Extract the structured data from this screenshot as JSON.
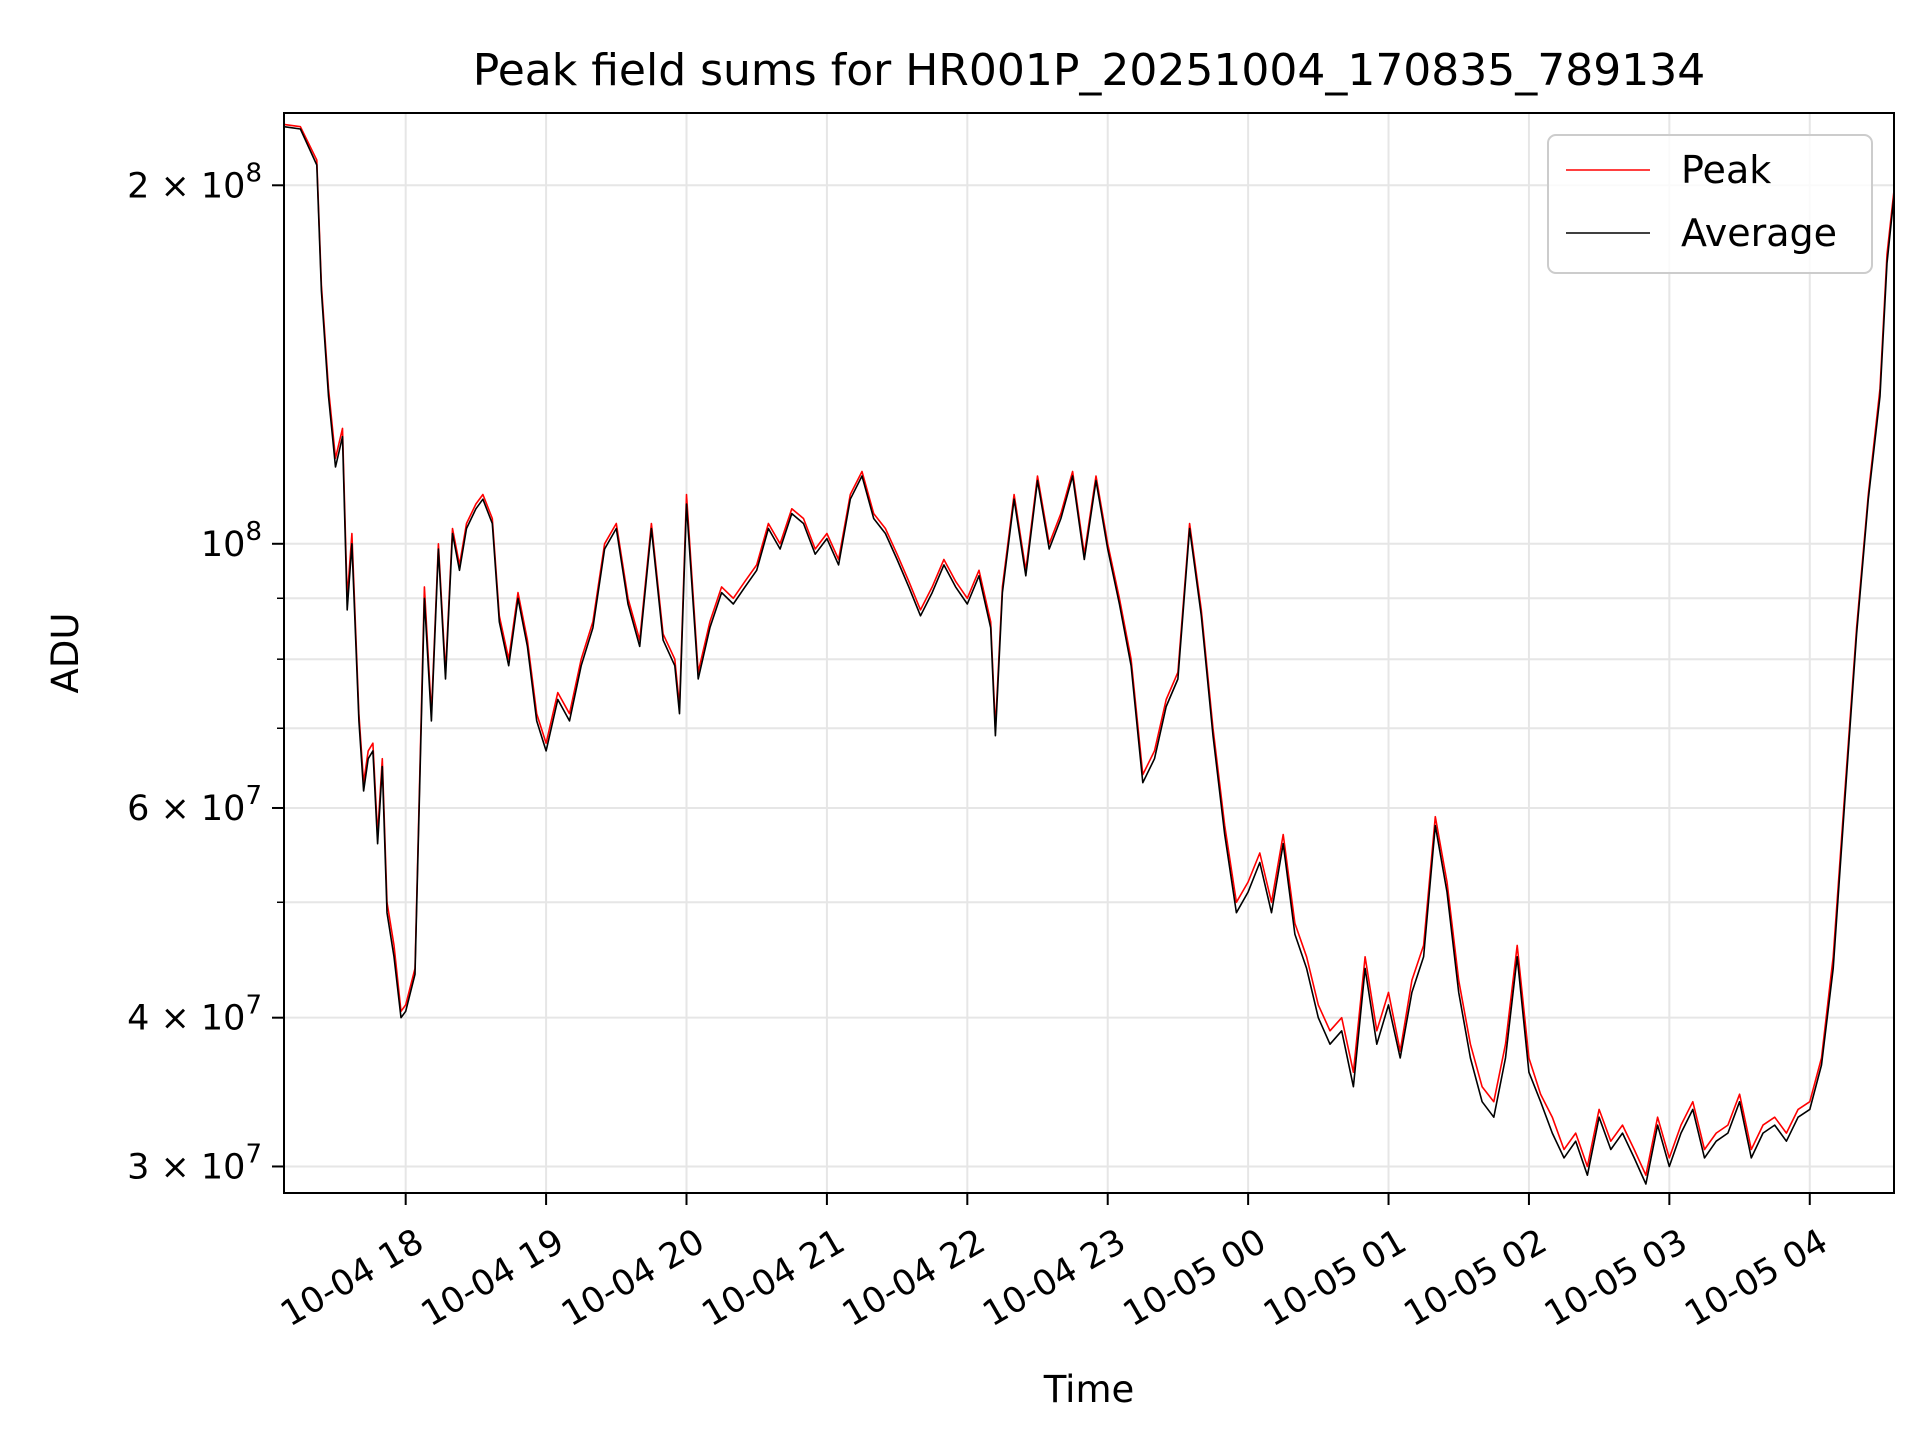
{
  "chart_data": {
    "type": "line",
    "title": "Peak field sums for HR001P_20251004_170835_789134",
    "xlabel": "Time",
    "ylabel": "ADU",
    "yscale": "log",
    "xlim": [
      "2025-10-04 17:08",
      "2025-10-05 04:36"
    ],
    "ylim": [
      28500000,
      230000000
    ],
    "grid": true,
    "legend_position": "top-right",
    "x_tick_labels": [
      "10-04 18",
      "10-04 19",
      "10-04 20",
      "10-04 21",
      "10-04 22",
      "10-04 23",
      "10-05 00",
      "10-05 01",
      "10-05 02",
      "10-05 03",
      "10-05 04"
    ],
    "x_ticks": [
      "2025-10-04 18:00",
      "2025-10-04 19:00",
      "2025-10-04 20:00",
      "2025-10-04 21:00",
      "2025-10-04 22:00",
      "2025-10-04 23:00",
      "2025-10-05 00:00",
      "2025-10-05 01:00",
      "2025-10-05 02:00",
      "2025-10-05 03:00",
      "2025-10-05 04:00"
    ],
    "y_ticks": [
      {
        "value": 30000000,
        "mantissa": "3",
        "exp": "7"
      },
      {
        "value": 40000000,
        "mantissa": "4",
        "exp": "7"
      },
      {
        "value": 60000000,
        "mantissa": "6",
        "exp": "7"
      },
      {
        "value": 100000000,
        "mantissa": "",
        "exp": "8"
      },
      {
        "value": 200000000,
        "mantissa": "2",
        "exp": "8"
      }
    ],
    "y_minor": [
      50000000,
      70000000,
      80000000,
      90000000
    ],
    "series": [
      {
        "name": "Peak",
        "color": "#ff0000",
        "x": [
          "2025-10-04 17:08",
          "2025-10-04 17:15",
          "2025-10-04 17:22",
          "2025-10-04 17:24",
          "2025-10-04 17:27",
          "2025-10-04 17:30",
          "2025-10-04 17:33",
          "2025-10-04 17:35",
          "2025-10-04 17:37",
          "2025-10-04 17:40",
          "2025-10-04 17:42",
          "2025-10-04 17:44",
          "2025-10-04 17:46",
          "2025-10-04 17:48",
          "2025-10-04 17:50",
          "2025-10-04 17:52",
          "2025-10-04 17:55",
          "2025-10-04 17:58",
          "2025-10-04 18:00",
          "2025-10-04 18:04",
          "2025-10-04 18:08",
          "2025-10-04 18:11",
          "2025-10-04 18:14",
          "2025-10-04 18:17",
          "2025-10-04 18:20",
          "2025-10-04 18:23",
          "2025-10-04 18:26",
          "2025-10-04 18:30",
          "2025-10-04 18:33",
          "2025-10-04 18:37",
          "2025-10-04 18:40",
          "2025-10-04 18:44",
          "2025-10-04 18:48",
          "2025-10-04 18:52",
          "2025-10-04 18:56",
          "2025-10-04 19:00",
          "2025-10-04 19:05",
          "2025-10-04 19:10",
          "2025-10-04 19:15",
          "2025-10-04 19:20",
          "2025-10-04 19:25",
          "2025-10-04 19:30",
          "2025-10-04 19:35",
          "2025-10-04 19:40",
          "2025-10-04 19:45",
          "2025-10-04 19:50",
          "2025-10-04 19:55",
          "2025-10-04 19:57",
          "2025-10-04 20:00",
          "2025-10-04 20:05",
          "2025-10-04 20:10",
          "2025-10-04 20:15",
          "2025-10-04 20:20",
          "2025-10-04 20:25",
          "2025-10-04 20:30",
          "2025-10-04 20:35",
          "2025-10-04 20:40",
          "2025-10-04 20:45",
          "2025-10-04 20:50",
          "2025-10-04 20:55",
          "2025-10-04 21:00",
          "2025-10-04 21:05",
          "2025-10-04 21:10",
          "2025-10-04 21:15",
          "2025-10-04 21:20",
          "2025-10-04 21:25",
          "2025-10-04 21:30",
          "2025-10-04 21:35",
          "2025-10-04 21:40",
          "2025-10-04 21:45",
          "2025-10-04 21:50",
          "2025-10-04 21:55",
          "2025-10-04 22:00",
          "2025-10-04 22:05",
          "2025-10-04 22:10",
          "2025-10-04 22:12",
          "2025-10-04 22:15",
          "2025-10-04 22:20",
          "2025-10-04 22:25",
          "2025-10-04 22:30",
          "2025-10-04 22:35",
          "2025-10-04 22:40",
          "2025-10-04 22:45",
          "2025-10-04 22:50",
          "2025-10-04 22:55",
          "2025-10-04 23:00",
          "2025-10-04 23:05",
          "2025-10-04 23:10",
          "2025-10-04 23:15",
          "2025-10-04 23:20",
          "2025-10-04 23:25",
          "2025-10-04 23:30",
          "2025-10-04 23:35",
          "2025-10-04 23:40",
          "2025-10-04 23:45",
          "2025-10-04 23:50",
          "2025-10-04 23:55",
          "2025-10-05 00:00",
          "2025-10-05 00:05",
          "2025-10-05 00:10",
          "2025-10-05 00:15",
          "2025-10-05 00:20",
          "2025-10-05 00:25",
          "2025-10-05 00:30",
          "2025-10-05 00:35",
          "2025-10-05 00:40",
          "2025-10-05 00:45",
          "2025-10-05 00:50",
          "2025-10-05 00:55",
          "2025-10-05 01:00",
          "2025-10-05 01:05",
          "2025-10-05 01:10",
          "2025-10-05 01:15",
          "2025-10-05 01:20",
          "2025-10-05 01:25",
          "2025-10-05 01:30",
          "2025-10-05 01:35",
          "2025-10-05 01:40",
          "2025-10-05 01:45",
          "2025-10-05 01:50",
          "2025-10-05 01:55",
          "2025-10-05 02:00",
          "2025-10-05 02:05",
          "2025-10-05 02:10",
          "2025-10-05 02:15",
          "2025-10-05 02:20",
          "2025-10-05 02:25",
          "2025-10-05 02:30",
          "2025-10-05 02:35",
          "2025-10-05 02:40",
          "2025-10-05 02:45",
          "2025-10-05 02:50",
          "2025-10-05 02:55",
          "2025-10-05 03:00",
          "2025-10-05 03:05",
          "2025-10-05 03:10",
          "2025-10-05 03:15",
          "2025-10-05 03:20",
          "2025-10-05 03:25",
          "2025-10-05 03:30",
          "2025-10-05 03:35",
          "2025-10-05 03:40",
          "2025-10-05 03:45",
          "2025-10-05 03:50",
          "2025-10-05 03:55",
          "2025-10-05 04:00",
          "2025-10-05 04:05",
          "2025-10-05 04:10",
          "2025-10-05 04:15",
          "2025-10-05 04:20",
          "2025-10-05 04:25",
          "2025-10-05 04:30",
          "2025-10-05 04:33",
          "2025-10-05 04:36"
        ],
        "values": [
          225000000,
          224000000,
          210000000,
          165000000,
          135000000,
          118000000,
          125000000,
          90000000,
          102000000,
          72000000,
          63000000,
          67000000,
          68000000,
          57000000,
          66000000,
          50000000,
          46000000,
          40500000,
          41000000,
          44000000,
          92000000,
          72000000,
          100000000,
          78000000,
          103000000,
          96000000,
          104000000,
          108000000,
          110000000,
          105000000,
          87000000,
          80000000,
          91000000,
          83000000,
          72000000,
          68000000,
          75000000,
          72000000,
          80000000,
          86000000,
          100000000,
          104000000,
          90000000,
          83000000,
          104000000,
          84000000,
          80000000,
          73000000,
          110000000,
          78000000,
          86000000,
          92000000,
          90000000,
          93000000,
          96000000,
          104000000,
          100000000,
          107000000,
          105000000,
          99000000,
          102000000,
          97000000,
          110000000,
          115000000,
          106000000,
          103000000,
          98000000,
          93000000,
          88000000,
          92000000,
          97000000,
          93000000,
          90000000,
          95000000,
          86000000,
          70000000,
          92000000,
          110000000,
          95000000,
          114000000,
          100000000,
          106000000,
          115000000,
          98000000,
          114000000,
          100000000,
          90000000,
          80000000,
          64000000,
          67000000,
          74000000,
          78000000,
          104000000,
          88000000,
          70000000,
          58000000,
          50000000,
          52000000,
          55000000,
          50000000,
          57000000,
          48000000,
          45000000,
          41000000,
          39000000,
          40000000,
          36000000,
          45000000,
          39000000,
          42000000,
          37500000,
          43000000,
          46000000,
          59000000,
          52000000,
          43000000,
          38000000,
          35000000,
          34000000,
          38000000,
          46000000,
          37000000,
          34500000,
          33000000,
          31000000,
          32000000,
          30000000,
          33500000,
          31500000,
          32500000,
          31000000,
          29500000,
          33000000,
          30500000,
          32500000,
          34000000,
          31000000,
          32000000,
          32500000,
          34500000,
          31000000,
          32500000,
          33000000,
          32000000,
          33500000,
          34000000,
          37000000,
          45000000,
          62000000,
          85000000,
          110000000,
          135000000,
          175000000,
          198000000
        ],
        "line_width": 1.0
      },
      {
        "name": "Average",
        "color": "#000000",
        "x": [
          "2025-10-04 17:08",
          "2025-10-04 17:15",
          "2025-10-04 17:22",
          "2025-10-04 17:24",
          "2025-10-04 17:27",
          "2025-10-04 17:30",
          "2025-10-04 17:33",
          "2025-10-04 17:35",
          "2025-10-04 17:37",
          "2025-10-04 17:40",
          "2025-10-04 17:42",
          "2025-10-04 17:44",
          "2025-10-04 17:46",
          "2025-10-04 17:48",
          "2025-10-04 17:50",
          "2025-10-04 17:52",
          "2025-10-04 17:55",
          "2025-10-04 17:58",
          "2025-10-04 18:00",
          "2025-10-04 18:04",
          "2025-10-04 18:08",
          "2025-10-04 18:11",
          "2025-10-04 18:14",
          "2025-10-04 18:17",
          "2025-10-04 18:20",
          "2025-10-04 18:23",
          "2025-10-04 18:26",
          "2025-10-04 18:30",
          "2025-10-04 18:33",
          "2025-10-04 18:37",
          "2025-10-04 18:40",
          "2025-10-04 18:44",
          "2025-10-04 18:48",
          "2025-10-04 18:52",
          "2025-10-04 18:56",
          "2025-10-04 19:00",
          "2025-10-04 19:05",
          "2025-10-04 19:10",
          "2025-10-04 19:15",
          "2025-10-04 19:20",
          "2025-10-04 19:25",
          "2025-10-04 19:30",
          "2025-10-04 19:35",
          "2025-10-04 19:40",
          "2025-10-04 19:45",
          "2025-10-04 19:50",
          "2025-10-04 19:55",
          "2025-10-04 19:57",
          "2025-10-04 20:00",
          "2025-10-04 20:05",
          "2025-10-04 20:10",
          "2025-10-04 20:15",
          "2025-10-04 20:20",
          "2025-10-04 20:25",
          "2025-10-04 20:30",
          "2025-10-04 20:35",
          "2025-10-04 20:40",
          "2025-10-04 20:45",
          "2025-10-04 20:50",
          "2025-10-04 20:55",
          "2025-10-04 21:00",
          "2025-10-04 21:05",
          "2025-10-04 21:10",
          "2025-10-04 21:15",
          "2025-10-04 21:20",
          "2025-10-04 21:25",
          "2025-10-04 21:30",
          "2025-10-04 21:35",
          "2025-10-04 21:40",
          "2025-10-04 21:45",
          "2025-10-04 21:50",
          "2025-10-04 21:55",
          "2025-10-04 22:00",
          "2025-10-04 22:05",
          "2025-10-04 22:10",
          "2025-10-04 22:12",
          "2025-10-04 22:15",
          "2025-10-04 22:20",
          "2025-10-04 22:25",
          "2025-10-04 22:30",
          "2025-10-04 22:35",
          "2025-10-04 22:40",
          "2025-10-04 22:45",
          "2025-10-04 22:50",
          "2025-10-04 22:55",
          "2025-10-04 23:00",
          "2025-10-04 23:05",
          "2025-10-04 23:10",
          "2025-10-04 23:15",
          "2025-10-04 23:20",
          "2025-10-04 23:25",
          "2025-10-04 23:30",
          "2025-10-04 23:35",
          "2025-10-04 23:40",
          "2025-10-04 23:45",
          "2025-10-04 23:50",
          "2025-10-04 23:55",
          "2025-10-05 00:00",
          "2025-10-05 00:05",
          "2025-10-05 00:10",
          "2025-10-05 00:15",
          "2025-10-05 00:20",
          "2025-10-05 00:25",
          "2025-10-05 00:30",
          "2025-10-05 00:35",
          "2025-10-05 00:40",
          "2025-10-05 00:45",
          "2025-10-05 00:50",
          "2025-10-05 00:55",
          "2025-10-05 01:00",
          "2025-10-05 01:05",
          "2025-10-05 01:10",
          "2025-10-05 01:15",
          "2025-10-05 01:20",
          "2025-10-05 01:25",
          "2025-10-05 01:30",
          "2025-10-05 01:35",
          "2025-10-05 01:40",
          "2025-10-05 01:45",
          "2025-10-05 01:50",
          "2025-10-05 01:55",
          "2025-10-05 02:00",
          "2025-10-05 02:05",
          "2025-10-05 02:10",
          "2025-10-05 02:15",
          "2025-10-05 02:20",
          "2025-10-05 02:25",
          "2025-10-05 02:30",
          "2025-10-05 02:35",
          "2025-10-05 02:40",
          "2025-10-05 02:45",
          "2025-10-05 02:50",
          "2025-10-05 02:55",
          "2025-10-05 03:00",
          "2025-10-05 03:05",
          "2025-10-05 03:10",
          "2025-10-05 03:15",
          "2025-10-05 03:20",
          "2025-10-05 03:25",
          "2025-10-05 03:30",
          "2025-10-05 03:35",
          "2025-10-05 03:40",
          "2025-10-05 03:45",
          "2025-10-05 03:50",
          "2025-10-05 03:55",
          "2025-10-05 04:00",
          "2025-10-05 04:05",
          "2025-10-05 04:10",
          "2025-10-05 04:15",
          "2025-10-05 04:20",
          "2025-10-05 04:25",
          "2025-10-05 04:30",
          "2025-10-05 04:33",
          "2025-10-05 04:36"
        ],
        "values": [
          224000000,
          223000000,
          208000000,
          163000000,
          133000000,
          116000000,
          123000000,
          88000000,
          100000000,
          71000000,
          62000000,
          66000000,
          67000000,
          56000000,
          65000000,
          49000000,
          45000000,
          40000000,
          40500000,
          43500000,
          90000000,
          71000000,
          99000000,
          77000000,
          102000000,
          95000000,
          103000000,
          107000000,
          109000000,
          104000000,
          86000000,
          79000000,
          90000000,
          82000000,
          71000000,
          67000000,
          74000000,
          71000000,
          79000000,
          85000000,
          99000000,
          103000000,
          89000000,
          82000000,
          103000000,
          83000000,
          79000000,
          72000000,
          108000000,
          77000000,
          85000000,
          91000000,
          89000000,
          92000000,
          95000000,
          103000000,
          99000000,
          106000000,
          104000000,
          98000000,
          101000000,
          96000000,
          109000000,
          114000000,
          105000000,
          102000000,
          97000000,
          92000000,
          87000000,
          91000000,
          96000000,
          92000000,
          89000000,
          94000000,
          85000000,
          69000000,
          91000000,
          109000000,
          94000000,
          113000000,
          99000000,
          105000000,
          114000000,
          97000000,
          113000000,
          99000000,
          89000000,
          79000000,
          63000000,
          66000000,
          73000000,
          77000000,
          103000000,
          87000000,
          69000000,
          57000000,
          49000000,
          51000000,
          54000000,
          49000000,
          56000000,
          47000000,
          44000000,
          40000000,
          38000000,
          39000000,
          35000000,
          44000000,
          38000000,
          41000000,
          37000000,
          42000000,
          45000000,
          58000000,
          51000000,
          42000000,
          37000000,
          34000000,
          33000000,
          37000000,
          45000000,
          36000000,
          34000000,
          32000000,
          30500000,
          31500000,
          29500000,
          33000000,
          31000000,
          32000000,
          30500000,
          29000000,
          32500000,
          30000000,
          32000000,
          33500000,
          30500000,
          31500000,
          32000000,
          34000000,
          30500000,
          32000000,
          32500000,
          31500000,
          33000000,
          33500000,
          36500000,
          44000000,
          61000000,
          84000000,
          109000000,
          133000000,
          172000000,
          196000000
        ],
        "line_width": 1.0
      }
    ]
  }
}
